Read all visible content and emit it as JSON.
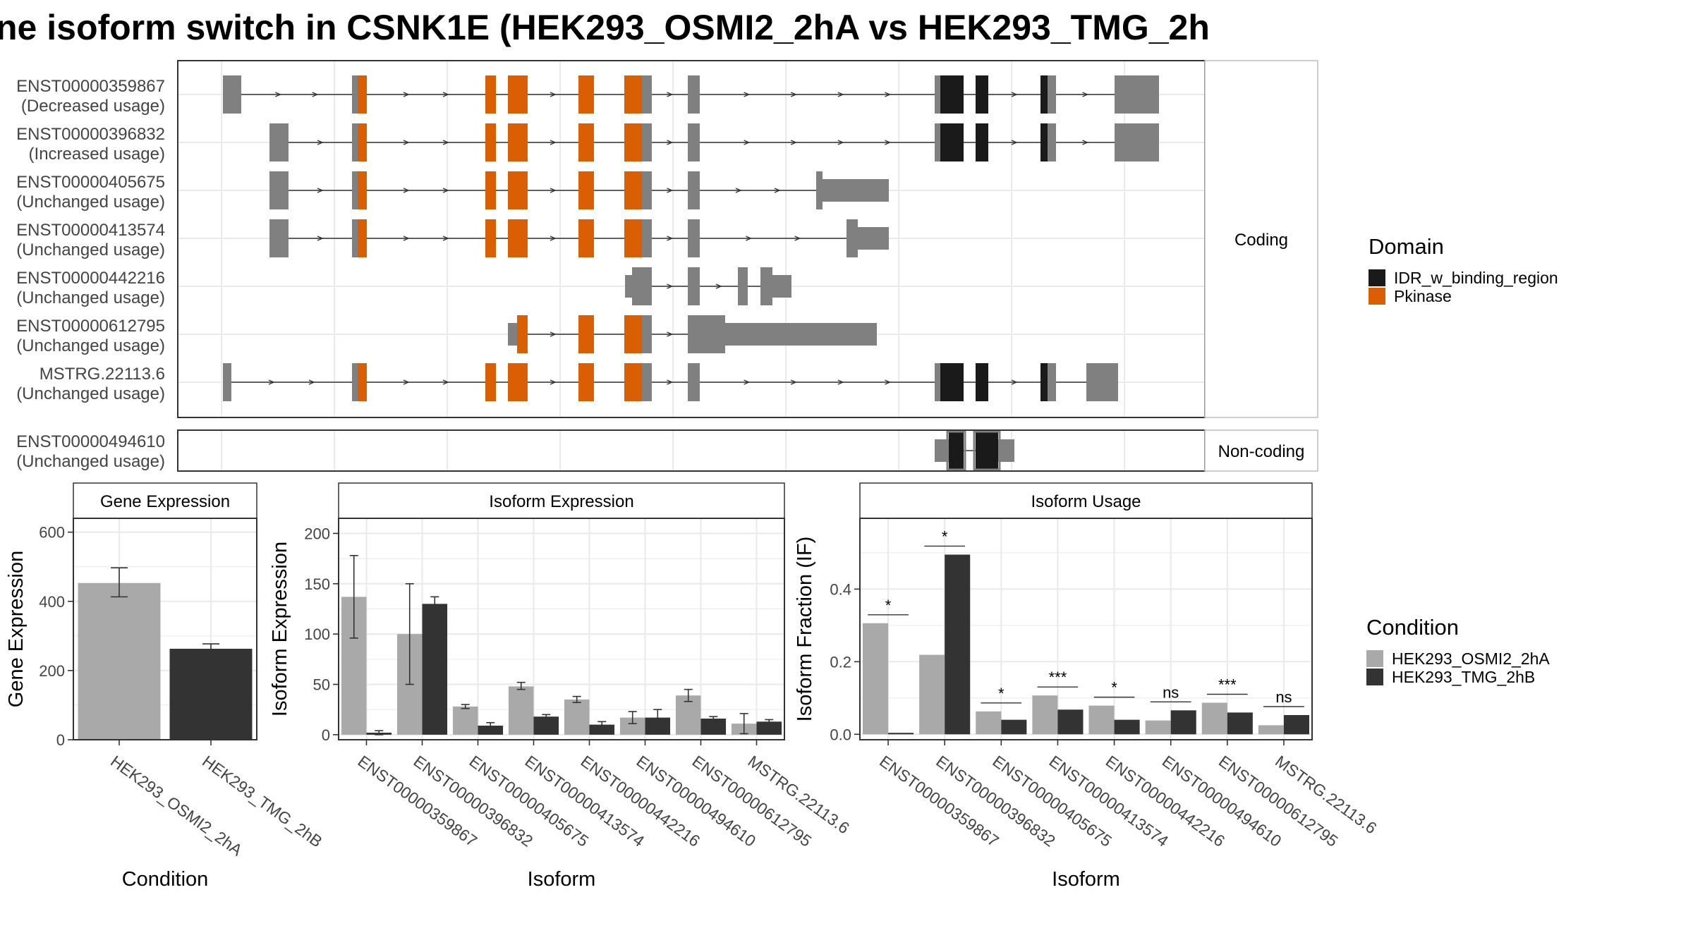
{
  "title": "ne isoform switch in CSNK1E (HEK293_OSMI2_2hA vs HEK293_TMG_2h",
  "colors": {
    "pkinase": "#d95f02",
    "idr": "#1a1a1a",
    "exon": "#808080",
    "cond1": "#a9a9a9",
    "cond2": "#333333",
    "panel_border": "#333333",
    "grid": "#ebebeb",
    "strip_bg": "#ffffff"
  },
  "structure": {
    "coding_label": "Coding",
    "noncoding_label": "Non-coding",
    "transcripts": [
      {
        "id": "ENST00000359867",
        "status": "(Decreased usage)",
        "group": "coding"
      },
      {
        "id": "ENST00000396832",
        "status": "(Increased usage)",
        "group": "coding"
      },
      {
        "id": "ENST00000405675",
        "status": "(Unchanged usage)",
        "group": "coding"
      },
      {
        "id": "ENST00000413574",
        "status": "(Unchanged usage)",
        "group": "coding"
      },
      {
        "id": "ENST00000442216",
        "status": "(Unchanged usage)",
        "group": "coding"
      },
      {
        "id": "ENST00000612795",
        "status": "(Unchanged usage)",
        "group": "coding"
      },
      {
        "id": "MSTRG.22113.6",
        "status": "(Unchanged usage)",
        "group": "coding"
      },
      {
        "id": "ENST00000494610",
        "status": "(Unchanged usage)",
        "group": "noncoding"
      }
    ]
  },
  "legends": {
    "domain": {
      "title": "Domain",
      "items": [
        {
          "label": "IDR_w_binding_region",
          "color": "#1a1a1a"
        },
        {
          "label": "Pkinase",
          "color": "#d95f02"
        }
      ]
    },
    "condition": {
      "title": "Condition",
      "items": [
        {
          "label": "HEK293_OSMI2_2hA",
          "color": "#a9a9a9"
        },
        {
          "label": "HEK293_TMG_2hB",
          "color": "#333333"
        }
      ]
    }
  },
  "chart_data": [
    {
      "type": "bar",
      "title": "Gene Expression",
      "xlabel": "Condition",
      "ylabel": "Gene Expression",
      "categories": [
        "HEK293_OSMI2_2hA",
        "HEK293_TMG_2hB"
      ],
      "values": [
        453,
        263
      ],
      "errors": [
        [
          413,
          497
        ],
        [
          250,
          277
        ]
      ],
      "ylim": [
        0,
        640
      ],
      "yticks": [
        0,
        200,
        400,
        600
      ],
      "grid": true
    },
    {
      "type": "bar",
      "title": "Isoform Expression",
      "xlabel": "Isoform",
      "ylabel": "Isoform Expression",
      "categories": [
        "ENST00000359867",
        "ENST00000396832",
        "ENST00000405675",
        "ENST00000413574",
        "ENST00000442216",
        "ENST00000494610",
        "ENST00000612795",
        "MSTRG.22113.6"
      ],
      "series": [
        {
          "name": "HEK293_OSMI2_2hA",
          "values": [
            137,
            100,
            28,
            48,
            35,
            17,
            39,
            11
          ],
          "errors": [
            [
              96,
              178
            ],
            [
              50,
              150
            ],
            [
              26,
              30
            ],
            [
              45,
              52
            ],
            [
              32,
              38
            ],
            [
              11,
              23
            ],
            [
              33,
              45
            ],
            [
              1,
              21
            ]
          ]
        },
        {
          "name": "HEK293_TMG_2hB",
          "values": [
            2,
            130,
            9,
            18,
            10,
            17,
            16,
            13
          ],
          "errors": [
            [
              0,
              4
            ],
            [
              123,
              137
            ],
            [
              6,
              12
            ],
            [
              16,
              20
            ],
            [
              7,
              13
            ],
            [
              10,
              25
            ],
            [
              14,
              18
            ],
            [
              11,
              15
            ]
          ]
        }
      ],
      "ylim": [
        -5,
        215
      ],
      "yticks": [
        0,
        50,
        100,
        150,
        200
      ],
      "grid": true
    },
    {
      "type": "bar",
      "title": "Isoform Usage",
      "xlabel": "Isoform",
      "ylabel": "Isoform Fraction (IF)",
      "categories": [
        "ENST00000359867",
        "ENST00000396832",
        "ENST00000405675",
        "ENST00000413574",
        "ENST00000442216",
        "ENST00000494610",
        "ENST00000612795",
        "MSTRG.22113.6"
      ],
      "series": [
        {
          "name": "HEK293_OSMI2_2hA",
          "values": [
            0.306,
            0.219,
            0.063,
            0.107,
            0.079,
            0.038,
            0.087,
            0.025
          ]
        },
        {
          "name": "HEK293_TMG_2hB",
          "values": [
            0.004,
            0.495,
            0.04,
            0.068,
            0.04,
            0.066,
            0.06,
            0.053
          ]
        }
      ],
      "significance": [
        "*",
        "*",
        "*",
        "***",
        "*",
        "ns",
        "***",
        "ns"
      ],
      "ylim": [
        -0.015,
        0.595
      ],
      "yticks": [
        0.0,
        0.2,
        0.4
      ],
      "ytick_labels": [
        "0.0",
        "0.2",
        "0.4"
      ],
      "grid": true
    }
  ]
}
